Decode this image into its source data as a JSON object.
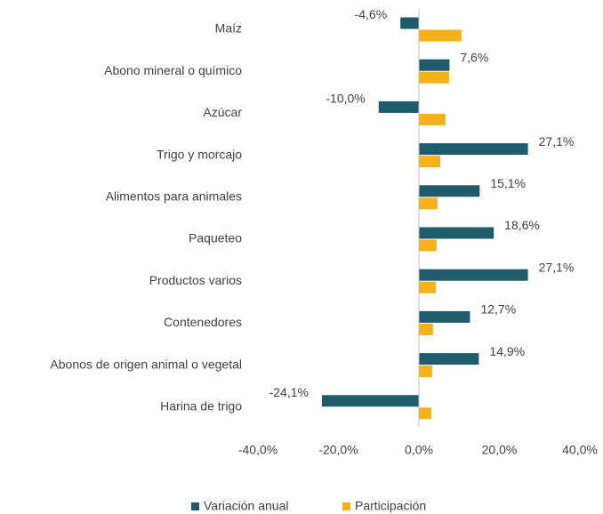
{
  "chart_data": {
    "type": "bar",
    "orientation": "horizontal",
    "categories": [
      "Maíz",
      "Abono mineral o químico",
      "Azúcar",
      "Trigo y morcajo",
      "Alimentos para animales",
      "Paqueteo",
      "Productos varios",
      "Contenedores",
      "Abonos de origen animal o vegetal",
      "Harina de trigo"
    ],
    "series": [
      {
        "name": "Variación anual",
        "color": "#1f5b6b",
        "values": [
          -4.6,
          7.6,
          -10.0,
          27.1,
          15.1,
          18.6,
          27.1,
          12.7,
          14.9,
          -24.1
        ],
        "value_labels": [
          "-4,6%",
          "7,6%",
          "-10,0%",
          "27,1%",
          "15,1%",
          "18,6%",
          "27,1%",
          "12,7%",
          "14,9%",
          "-24,1%"
        ]
      },
      {
        "name": "Participación",
        "color": "#f7b118",
        "values": [
          10.6,
          7.5,
          6.6,
          5.3,
          4.6,
          4.4,
          4.2,
          3.5,
          3.3,
          3.1
        ]
      }
    ],
    "xlim": [
      -40,
      40
    ],
    "xticks": [
      {
        "value": -40,
        "label": "-40,0%"
      },
      {
        "value": -20,
        "label": "-20,0%"
      },
      {
        "value": 0,
        "label": "0,0%"
      },
      {
        "value": 20,
        "label": "20,0%"
      },
      {
        "value": 40,
        "label": "40,0%"
      }
    ],
    "grid": false,
    "legend": "bottom"
  }
}
